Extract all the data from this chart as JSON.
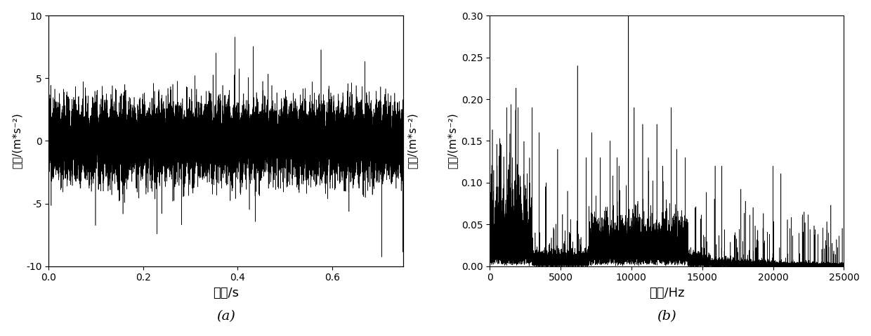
{
  "fig_width": 12.4,
  "fig_height": 4.78,
  "dpi": 100,
  "background_color": "#ffffff",
  "subplot_a": {
    "xlabel": "时间/s",
    "ylabel": "振幅/(m*s⁻²)",
    "xlim": [
      0,
      0.75
    ],
    "ylim": [
      -10,
      10
    ],
    "xticks": [
      0,
      0.2,
      0.4,
      0.6
    ],
    "yticks": [
      -10,
      -5,
      0,
      5,
      10
    ],
    "label": "(a)",
    "line_color": "#000000",
    "line_width": 0.4,
    "sample_rate": 51200,
    "duration": 0.75,
    "seed": 42
  },
  "subplot_b": {
    "xlabel": "频率/Hz",
    "ylabel": "振幅/(m*s⁻²)",
    "xlim": [
      0,
      25000
    ],
    "ylim": [
      0,
      0.3
    ],
    "xticks": [
      0,
      5000,
      10000,
      15000,
      20000,
      25000
    ],
    "yticks": [
      0,
      0.05,
      0.1,
      0.15,
      0.2,
      0.25,
      0.3
    ],
    "label": "(b)",
    "line_color": "#000000",
    "line_width": 0.4,
    "seed": 7
  }
}
